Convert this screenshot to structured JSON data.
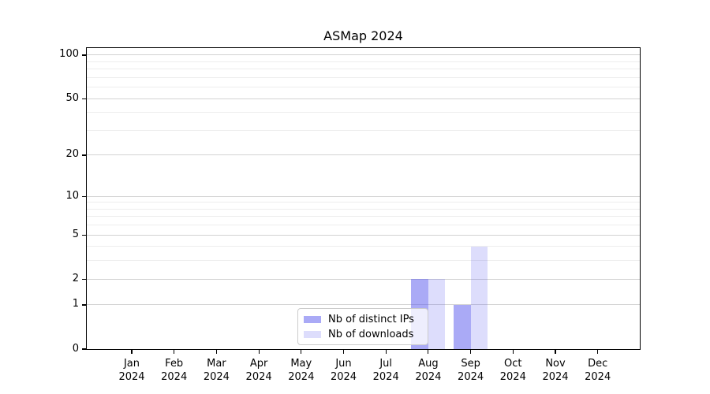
{
  "chart_data": {
    "type": "bar",
    "title": "ASMap 2024",
    "categories": [
      {
        "month": "Jan",
        "year": "2024"
      },
      {
        "month": "Feb",
        "year": "2024"
      },
      {
        "month": "Mar",
        "year": "2024"
      },
      {
        "month": "Apr",
        "year": "2024"
      },
      {
        "month": "May",
        "year": "2024"
      },
      {
        "month": "Jun",
        "year": "2024"
      },
      {
        "month": "Jul",
        "year": "2024"
      },
      {
        "month": "Aug",
        "year": "2024"
      },
      {
        "month": "Sep",
        "year": "2024"
      },
      {
        "month": "Oct",
        "year": "2024"
      },
      {
        "month": "Nov",
        "year": "2024"
      },
      {
        "month": "Dec",
        "year": "2024"
      }
    ],
    "series": [
      {
        "name": "Nb of distinct IPs",
        "color": "rgba(85,85,238,0.5)",
        "hex_on_white": "#aaaaf2",
        "values": [
          0,
          0,
          0,
          0,
          0,
          0,
          0,
          2,
          1,
          0,
          0,
          0
        ]
      },
      {
        "name": "Nb of downloads",
        "color": "rgba(85,85,238,0.2)",
        "hex_on_white": "#dcdcfa",
        "values": [
          0,
          0,
          0,
          0,
          0,
          0,
          0,
          2,
          4,
          0,
          0,
          0
        ]
      }
    ],
    "y_scale": "log1p",
    "y_ticks": [
      0,
      1,
      2,
      5,
      10,
      20,
      50,
      100
    ],
    "y_minor_gridlines": [
      3,
      4,
      6,
      7,
      8,
      9,
      30,
      40,
      60,
      70,
      80,
      90
    ],
    "ylim": [
      0,
      110
    ],
    "grid": "horizontal",
    "legend_position": "bottom-center",
    "colors": {
      "grid_major": "#d2d2d2",
      "grid_minor": "#ededed",
      "spine": "#000000",
      "text": "#000000"
    }
  }
}
